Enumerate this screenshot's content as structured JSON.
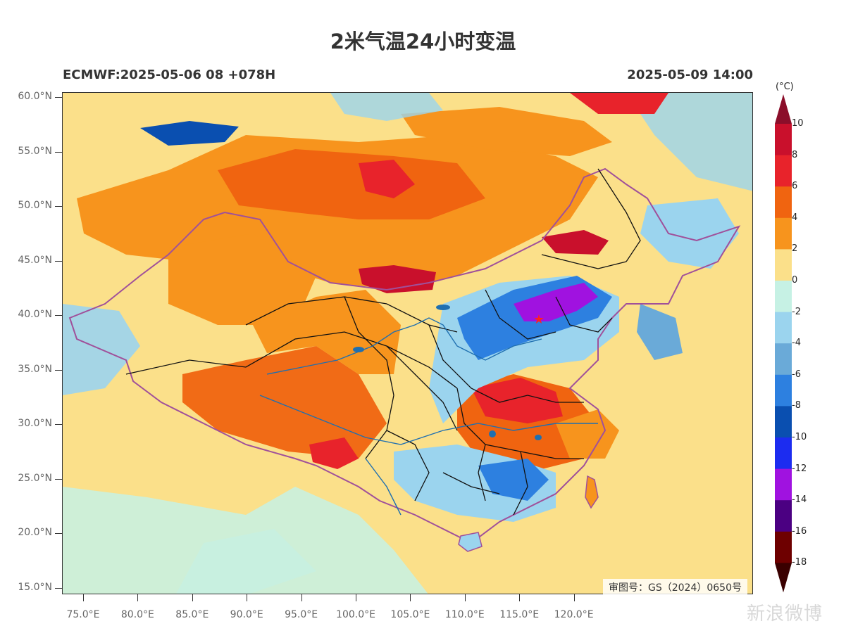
{
  "title": "2米气温24小时变温",
  "subtitle_left": "ECMWF:2025-05-06 08 +078H",
  "subtitle_right": "2025-05-09 14:00",
  "approval_number": "审图号：GS（2024）0650号",
  "watermark": "新浪微博",
  "colorbar": {
    "unit": "(°C)",
    "labels": [
      "10",
      "8",
      "6",
      "4",
      "2",
      "0",
      "-2",
      "-4",
      "-6",
      "-8",
      "-10",
      "-12",
      "-14",
      "-16",
      "-18"
    ],
    "colors": [
      "#8b0e2a",
      "#c9102c",
      "#e8232b",
      "#f06410",
      "#f7941d",
      "#fbe08a",
      "#c6f1e4",
      "#9bd4ee",
      "#6aaad8",
      "#2d80e0",
      "#0a4fb0",
      "#1c2cf0",
      "#a012e0",
      "#4b0082",
      "#6e0000",
      "#3a0000"
    ]
  },
  "axes": {
    "lat_ticks": [
      "60.0°N",
      "55.0°N",
      "50.0°N",
      "45.0°N",
      "40.0°N",
      "35.0°N",
      "30.0°N",
      "25.0°N",
      "20.0°N",
      "15.0°N"
    ],
    "lon_ticks": [
      "75.0°E",
      "80.0°E",
      "85.0°E",
      "90.0°E",
      "95.0°E",
      "100.0°E",
      "105.0°E",
      "110.0°E",
      "115.0°E",
      "120.0°E"
    ]
  },
  "colors": {
    "background_light": "#fbe08a",
    "warm": "#f7941d",
    "warm_strong": "#f06410",
    "hot": "#e8232b",
    "cool": "#9bd4ee",
    "cold": "#2d80e0",
    "very_cold": "#a012e0",
    "border_china": "#a0509a",
    "province_border": "#111111",
    "river": "#1f6fb0",
    "capital_marker": "#ff2020"
  }
}
